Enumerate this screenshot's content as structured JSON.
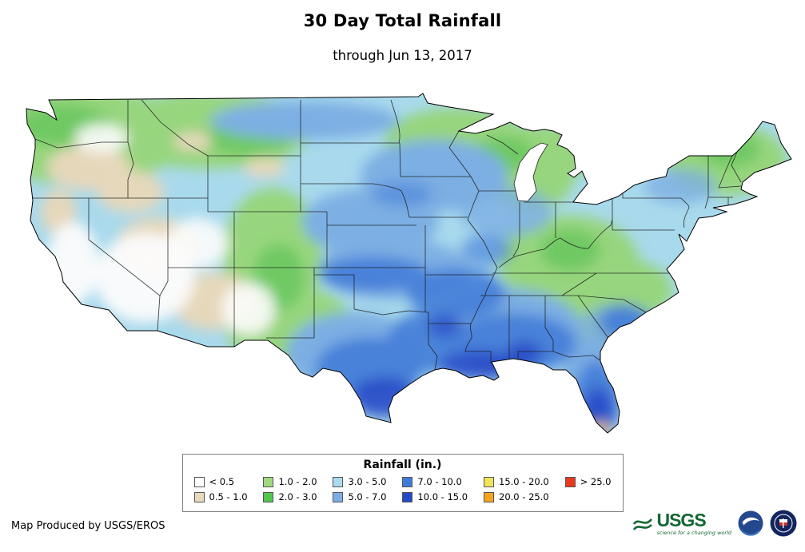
{
  "header": {
    "title": "30 Day Total Rainfall",
    "subtitle": "through Jun 13, 2017"
  },
  "legend": {
    "title": "Rainfall (in.)",
    "items": [
      {
        "label": "< 0.5",
        "color": "#FFFFFF"
      },
      {
        "label": "0.5 - 1.0",
        "color": "#E8D9BB"
      },
      {
        "label": "1.0 - 2.0",
        "color": "#9FDA80"
      },
      {
        "label": "2.0 - 3.0",
        "color": "#53C64F"
      },
      {
        "label": "3.0 - 5.0",
        "color": "#A8DBEF"
      },
      {
        "label": "5.0 - 7.0",
        "color": "#7AAFE5"
      },
      {
        "label": "7.0 - 10.0",
        "color": "#3F7CDA"
      },
      {
        "label": "10.0 - 15.0",
        "color": "#2449C9"
      },
      {
        "label": "15.0 - 20.0",
        "color": "#F2E35C"
      },
      {
        "label": "20.0 - 25.0",
        "color": "#F6A41F"
      },
      {
        "label": "> 25.0",
        "color": "#E8391F"
      }
    ]
  },
  "footer": {
    "credit": "Map Produced by USGS/EROS"
  },
  "logos": {
    "usgs": {
      "text": "USGS",
      "tagline": "science for a changing world"
    }
  }
}
